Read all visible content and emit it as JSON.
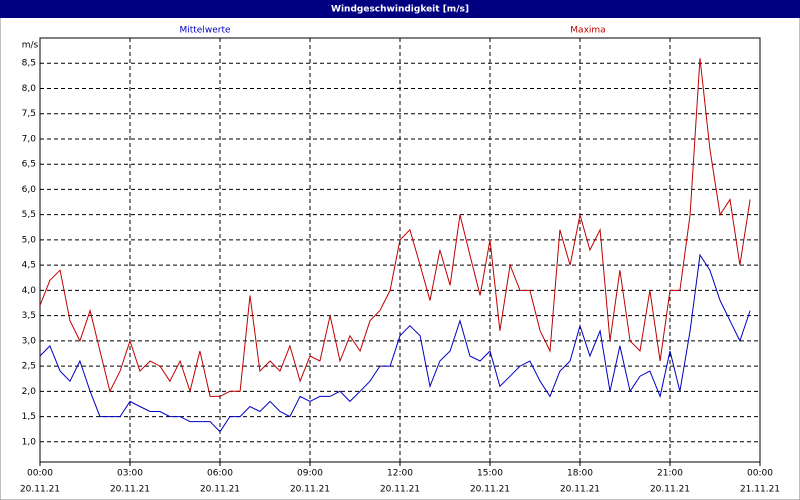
{
  "chart_data": {
    "type": "line",
    "title": "Windgeschwindigkeit [m/s]",
    "y_label": "m/s",
    "xlim": [
      0,
      24
    ],
    "ylim": [
      0.6,
      9.0
    ],
    "xticks": [
      {
        "value": 0,
        "label": "00:00"
      },
      {
        "value": 3,
        "label": "03:00"
      },
      {
        "value": 6,
        "label": "06:00"
      },
      {
        "value": 9,
        "label": "09:00"
      },
      {
        "value": 12,
        "label": "12:00"
      },
      {
        "value": 15,
        "label": "15:00"
      },
      {
        "value": 18,
        "label": "18:00"
      },
      {
        "value": 21,
        "label": "21:00"
      },
      {
        "value": 24,
        "label": "00:00"
      }
    ],
    "xtick_dates": [
      "20.11.21",
      "20.11.21",
      "20.11.21",
      "20.11.21",
      "20.11.21",
      "20.11.21",
      "20.11.21",
      "20.11.21",
      "21.11.21"
    ],
    "yticks": [
      {
        "value": 1.0,
        "label": "1,0"
      },
      {
        "value": 1.5,
        "label": "1,5"
      },
      {
        "value": 2.0,
        "label": "2,0"
      },
      {
        "value": 2.5,
        "label": "2,5"
      },
      {
        "value": 3.0,
        "label": "3,0"
      },
      {
        "value": 3.5,
        "label": "3,5"
      },
      {
        "value": 4.0,
        "label": "4,0"
      },
      {
        "value": 4.5,
        "label": "4,5"
      },
      {
        "value": 5.0,
        "label": "5,0"
      },
      {
        "value": 5.5,
        "label": "5,5"
      },
      {
        "value": 6.0,
        "label": "6,0"
      },
      {
        "value": 6.5,
        "label": "6,5"
      },
      {
        "value": 7.0,
        "label": "7,0"
      },
      {
        "value": 7.5,
        "label": "7,5"
      },
      {
        "value": 8.0,
        "label": "8,0"
      },
      {
        "value": 8.5,
        "label": "8,5"
      }
    ],
    "grid": true,
    "x": [
      0,
      0.33,
      0.67,
      1,
      1.33,
      1.67,
      2,
      2.33,
      2.67,
      3,
      3.33,
      3.67,
      4,
      4.33,
      4.67,
      5,
      5.33,
      5.67,
      6,
      6.33,
      6.67,
      7,
      7.33,
      7.67,
      8,
      8.33,
      8.67,
      9,
      9.33,
      9.67,
      10,
      10.33,
      10.67,
      11,
      11.33,
      11.67,
      12,
      12.33,
      12.67,
      13,
      13.33,
      13.67,
      14,
      14.33,
      14.67,
      15,
      15.33,
      15.67,
      16,
      16.33,
      16.67,
      17,
      17.33,
      17.67,
      18,
      18.33,
      18.67,
      19,
      19.33,
      19.67,
      20,
      20.33,
      20.67,
      21,
      21.33,
      21.67,
      22,
      22.33,
      22.67,
      23,
      23.33,
      23.67
    ],
    "series": [
      {
        "name": "Mittelwerte",
        "color": "#0000c0",
        "values": [
          2.7,
          2.9,
          2.4,
          2.2,
          2.6,
          2.0,
          1.5,
          1.5,
          1.5,
          1.8,
          1.7,
          1.6,
          1.6,
          1.5,
          1.5,
          1.4,
          1.4,
          1.4,
          1.2,
          1.5,
          1.5,
          1.7,
          1.6,
          1.8,
          1.6,
          1.5,
          1.9,
          1.8,
          1.9,
          1.9,
          2.0,
          1.8,
          2.0,
          2.2,
          2.5,
          2.5,
          3.1,
          3.3,
          3.1,
          2.1,
          2.6,
          2.8,
          3.4,
          2.7,
          2.6,
          2.8,
          2.1,
          2.3,
          2.5,
          2.6,
          2.2,
          1.9,
          2.4,
          2.6,
          3.3,
          2.7,
          3.2,
          2.0,
          2.9,
          2.0,
          2.3,
          2.4,
          1.9,
          2.8,
          2.0,
          3.2,
          4.7,
          4.4,
          3.8,
          3.4,
          3.0,
          3.6
        ]
      },
      {
        "name": "Maxima",
        "color": "#c00000",
        "values": [
          3.7,
          4.2,
          4.4,
          3.4,
          3.0,
          3.6,
          2.8,
          2.0,
          2.4,
          3.0,
          2.4,
          2.6,
          2.5,
          2.2,
          2.6,
          2.0,
          2.8,
          1.9,
          1.9,
          2.0,
          2.0,
          3.9,
          2.4,
          2.6,
          2.4,
          2.9,
          2.2,
          2.7,
          2.6,
          3.5,
          2.6,
          3.1,
          2.8,
          3.4,
          3.6,
          4.0,
          5.0,
          5.2,
          4.5,
          3.8,
          4.8,
          4.1,
          5.5,
          4.7,
          3.9,
          5.0,
          3.2,
          4.5,
          4.0,
          4.0,
          3.2,
          2.8,
          5.2,
          4.5,
          5.5,
          4.8,
          5.2,
          3.0,
          4.4,
          3.0,
          2.8,
          4.0,
          2.6,
          4.0,
          4.0,
          5.5,
          8.6,
          6.8,
          5.5,
          5.8,
          4.5,
          5.8
        ]
      }
    ]
  }
}
